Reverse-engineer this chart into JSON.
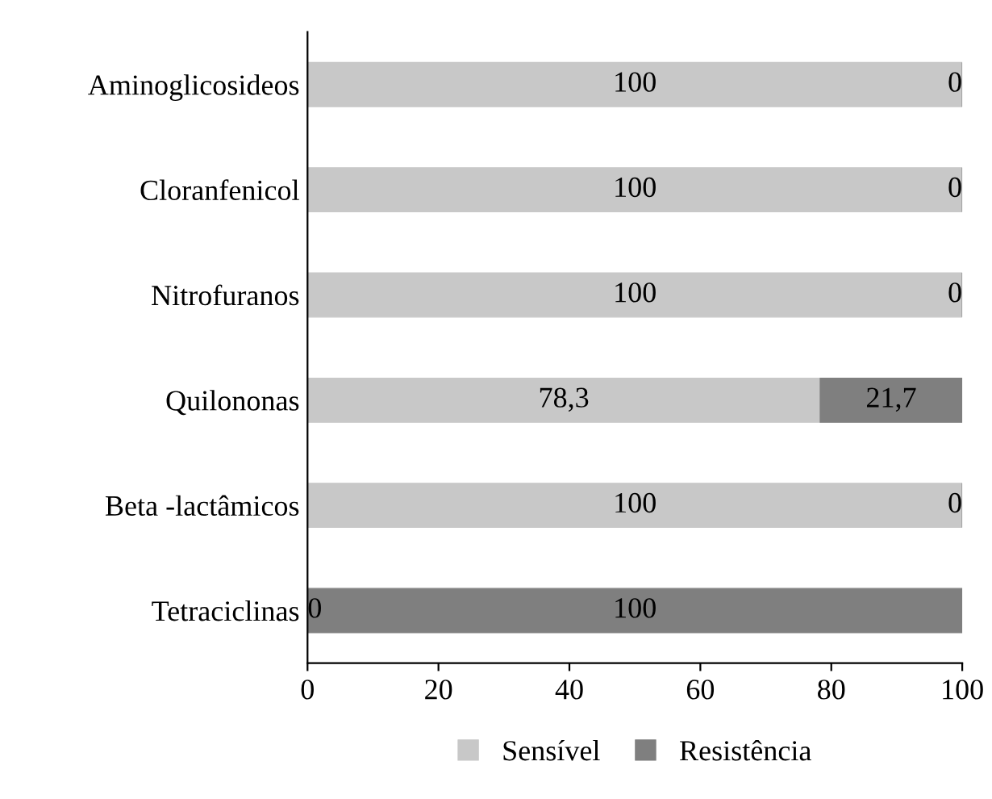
{
  "chart_data": {
    "type": "bar",
    "orientation": "horizontal",
    "stacked": true,
    "categories": [
      "Aminoglicosideos",
      "Cloranfenicol",
      "Nitrofuranos",
      "Quilononas",
      "Beta -lactâmicos",
      "Tetraciclinas"
    ],
    "series": [
      {
        "name": "Sensível",
        "color": "#c8c8c8",
        "values": [
          100,
          100,
          100,
          78.3,
          100,
          0
        ],
        "value_labels": [
          "100",
          "100",
          "100",
          "78,3",
          "100",
          "0"
        ]
      },
      {
        "name": "Resistência",
        "color": "#7f7f7f",
        "values": [
          0,
          0,
          0,
          21.7,
          0,
          100
        ],
        "value_labels": [
          "0",
          "0",
          "0",
          "21,7",
          "0",
          "100"
        ]
      }
    ],
    "xlim": [
      0,
      100
    ],
    "xticks": [
      0,
      20,
      40,
      60,
      80,
      100
    ],
    "grid": false,
    "legend": "bottom"
  }
}
